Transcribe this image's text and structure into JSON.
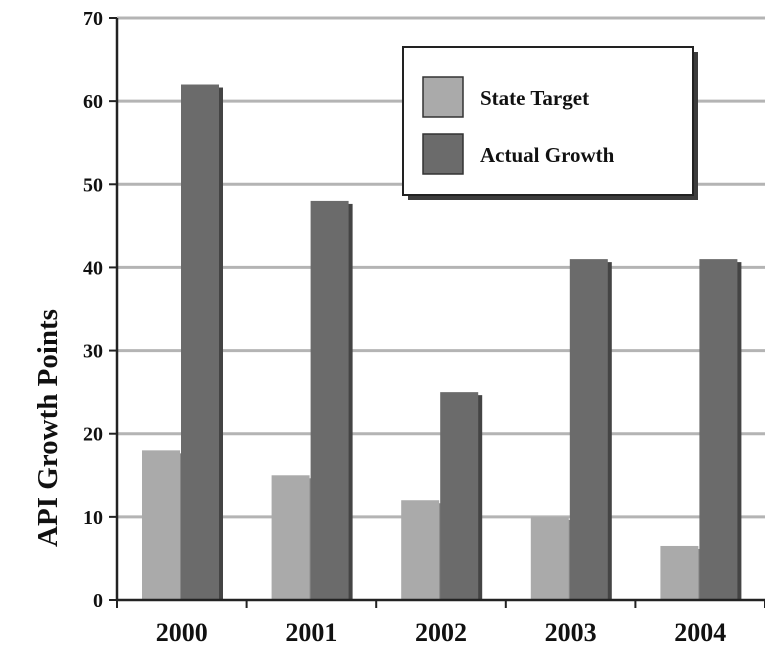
{
  "chart_data": {
    "type": "bar",
    "categories": [
      "2000",
      "2001",
      "2002",
      "2003",
      "2004"
    ],
    "series": [
      {
        "name": "State Target",
        "values": [
          18,
          15,
          12,
          10,
          6.5
        ],
        "color": "#aaaaaa"
      },
      {
        "name": "Actual Growth",
        "values": [
          62,
          48,
          25,
          41,
          41
        ],
        "color": "#6b6b6b"
      }
    ],
    "ylabel": "API Growth Points",
    "xlabel": "",
    "ylim": [
      0,
      70
    ],
    "yticks": [
      0,
      10,
      20,
      30,
      40,
      50,
      60,
      70
    ],
    "grid": true,
    "legend": "top-right"
  }
}
